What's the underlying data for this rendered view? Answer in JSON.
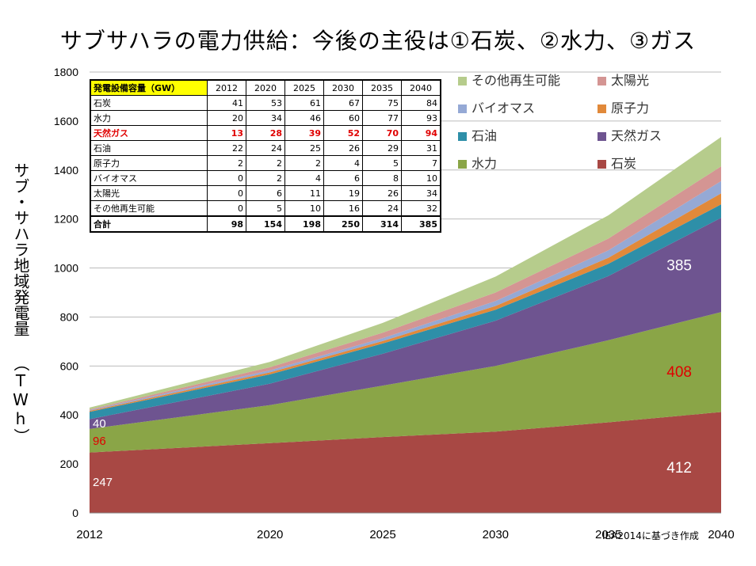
{
  "title": "サブサハラの電力供給：今後の主役は①石炭、②水力、③ガス",
  "source": "IEA2014に基づき作成",
  "chart_data": {
    "type": "area",
    "stacked": true,
    "ylabel": "サブ・サハラ地域発電量 （TWh）",
    "x": [
      2012,
      2020,
      2025,
      2030,
      2035,
      2040
    ],
    "xticks": [
      "2012",
      "2020",
      "2025",
      "2030",
      "2035",
      "2040"
    ],
    "ylim": [
      0,
      1800
    ],
    "yticks": [
      0,
      200,
      400,
      600,
      800,
      1000,
      1200,
      1400,
      1600,
      1800
    ],
    "series": [
      {
        "name": "石炭",
        "color": "#a84844",
        "values": [
          247,
          285,
          310,
          332,
          370,
          412
        ]
      },
      {
        "name": "水力",
        "color": "#8aa547",
        "values": [
          96,
          155,
          210,
          268,
          335,
          408
        ]
      },
      {
        "name": "天然ガス",
        "color": "#6e5490",
        "values": [
          40,
          88,
          130,
          185,
          262,
          385
        ]
      },
      {
        "name": "石油",
        "color": "#2e8fa8",
        "values": [
          30,
          38,
          42,
          45,
          50,
          55
        ]
      },
      {
        "name": "原子力",
        "color": "#e1893a",
        "values": [
          4,
          8,
          10,
          15,
          25,
          45
        ]
      },
      {
        "name": "バイオマス",
        "color": "#95a9d5",
        "values": [
          3,
          8,
          12,
          20,
          30,
          50
        ]
      },
      {
        "name": "太陽光",
        "color": "#d49593",
        "values": [
          3,
          13,
          22,
          35,
          48,
          60
        ]
      },
      {
        "name": "その他再生可能",
        "color": "#b6cc8c",
        "values": [
          7,
          22,
          40,
          65,
          95,
          120
        ]
      }
    ],
    "labels": [
      {
        "text": "247",
        "x": 2012,
        "y": 130,
        "color": "#ffffff",
        "size": 15,
        "anchor": "start"
      },
      {
        "text": "96",
        "x": 2012,
        "y": 298,
        "color": "#e00000",
        "size": 15,
        "anchor": "start"
      },
      {
        "text": "40",
        "x": 2012,
        "y": 368,
        "color": "#ffffff",
        "size": 15,
        "anchor": "start"
      },
      {
        "text": "412",
        "x": 2038.7,
        "y": 185,
        "color": "#ffffff",
        "size": 19,
        "anchor": "end"
      },
      {
        "text": "408",
        "x": 2038.7,
        "y": 575,
        "color": "#e00000",
        "size": 19,
        "anchor": "end"
      },
      {
        "text": "385",
        "x": 2038.7,
        "y": 1010,
        "color": "#ffffff",
        "size": 19,
        "anchor": "end"
      }
    ]
  },
  "capacity_table": {
    "header": "発電設備容量（GW）",
    "years": [
      "2012",
      "2020",
      "2025",
      "2030",
      "2035",
      "2040"
    ],
    "rows": [
      {
        "name": "石炭",
        "values": [
          "41",
          "53",
          "61",
          "67",
          "75",
          "84"
        ]
      },
      {
        "name": "水力",
        "values": [
          "20",
          "34",
          "46",
          "60",
          "77",
          "93"
        ]
      },
      {
        "name": "天然ガス",
        "values": [
          "13",
          "28",
          "39",
          "52",
          "70",
          "94"
        ]
      },
      {
        "name": "石油",
        "values": [
          "22",
          "24",
          "25",
          "26",
          "29",
          "31"
        ]
      },
      {
        "name": "原子力",
        "values": [
          "2",
          "2",
          "2",
          "4",
          "5",
          "7"
        ]
      },
      {
        "name": "バイオマス",
        "values": [
          "0",
          "2",
          "4",
          "6",
          "8",
          "10"
        ]
      },
      {
        "name": "太陽光",
        "values": [
          "0",
          "6",
          "11",
          "19",
          "26",
          "34"
        ]
      },
      {
        "name": "その他再生可能",
        "values": [
          "0",
          "5",
          "10",
          "16",
          "24",
          "32"
        ]
      }
    ],
    "total": {
      "name": "合計",
      "values": [
        "98",
        "154",
        "198",
        "250",
        "314",
        "385"
      ]
    }
  },
  "legend": [
    {
      "name": "その他再生可能",
      "color": "#b6cc8c"
    },
    {
      "name": "太陽光",
      "color": "#d49593"
    },
    {
      "name": "バイオマス",
      "color": "#95a9d5"
    },
    {
      "name": "原子力",
      "color": "#e1893a"
    },
    {
      "name": "石油",
      "color": "#2e8fa8"
    },
    {
      "name": "天然ガス",
      "color": "#6e5490"
    },
    {
      "name": "水力",
      "color": "#8aa547"
    },
    {
      "name": "石炭",
      "color": "#a84844"
    }
  ]
}
